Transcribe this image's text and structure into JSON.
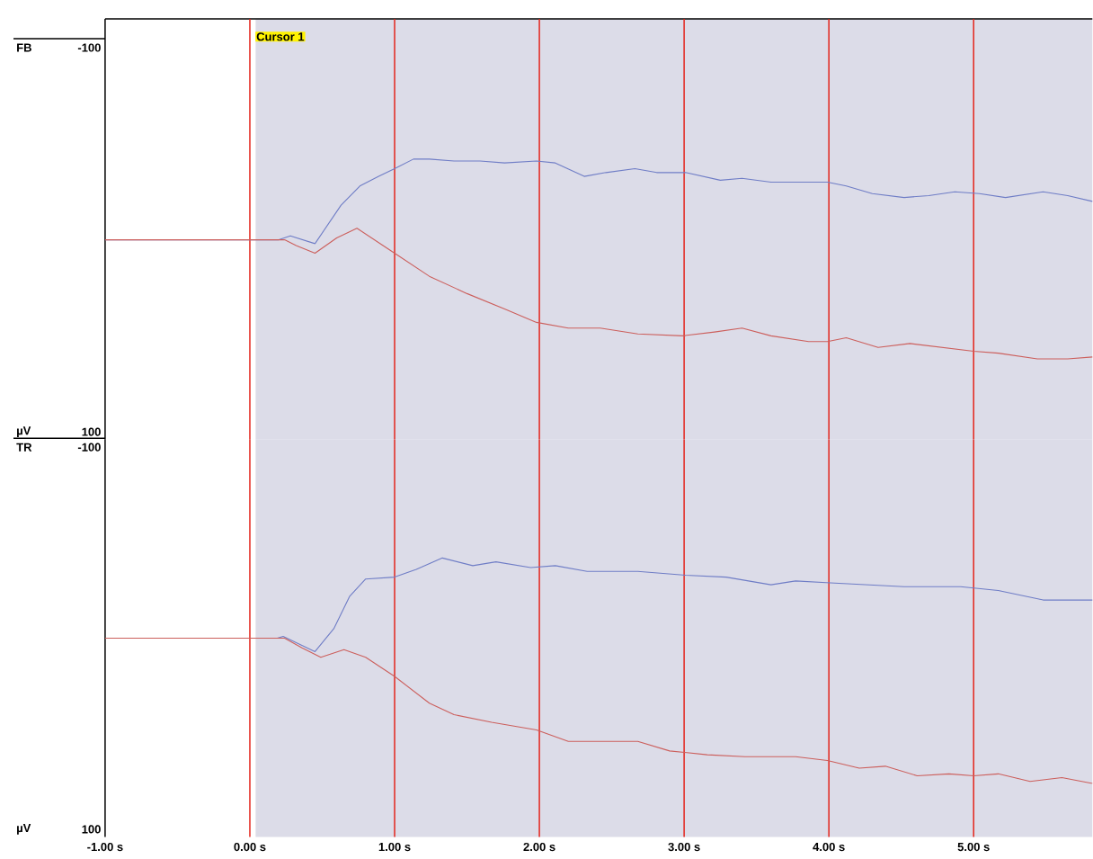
{
  "chart_data": [
    {
      "type": "line",
      "title": "FB",
      "ylabel": "µV",
      "xlim": [
        -1,
        5.82
      ],
      "ylim": [
        104,
        -115
      ],
      "yticks": [
        -100,
        100
      ],
      "tick_labels": "y",
      "series": [
        {
          "color": "#6f7dc6",
          "x": [
            -1,
            0.2,
            0.28,
            0.45,
            0.63,
            0.76,
            0.89,
            1.0,
            1.13,
            1.24,
            1.41,
            1.59,
            1.76,
            1.98,
            2.11,
            2.31,
            2.46,
            2.66,
            2.81,
            3.01,
            3.25,
            3.4,
            3.6,
            3.99,
            4.12,
            4.3,
            4.52,
            4.69,
            4.87,
            5.04,
            5.22,
            5.48,
            5.65,
            5.82
          ],
          "values": [
            0,
            0,
            -2,
            2,
            -18,
            -28,
            -33,
            -37,
            -42,
            -42,
            -41,
            -41,
            -40,
            -41,
            -40,
            -33,
            -35,
            -37,
            -35,
            -35,
            -31,
            -32,
            -30,
            -30,
            -28,
            -24,
            -22,
            -23,
            -25,
            -24,
            -22,
            -25,
            -23,
            -20
          ]
        },
        {
          "color": "#cc5f5c",
          "x": [
            -1,
            0.24,
            0.32,
            0.45,
            0.6,
            0.74,
            0.84,
            1.0,
            1.24,
            1.5,
            1.76,
            1.98,
            2.2,
            2.42,
            2.68,
            2.99,
            3.21,
            3.4,
            3.6,
            3.86,
            3.99,
            4.12,
            4.34,
            4.56,
            4.78,
            5.0,
            5.17,
            5.44,
            5.65,
            5.82
          ],
          "values": [
            0,
            0,
            3,
            7,
            -1,
            -6,
            -1,
            7,
            19,
            28,
            36,
            43,
            46,
            46,
            49,
            50,
            48,
            46,
            50,
            53,
            53,
            51,
            56,
            54,
            56,
            58,
            59,
            62,
            62,
            61
          ]
        }
      ],
      "ref_lines": [
        {
          "axis": "x",
          "value": 0,
          "label": "Cursor 1",
          "color": "#e3241b"
        },
        {
          "axis": "x",
          "value": 1,
          "color": "#e3241b"
        },
        {
          "axis": "x",
          "value": 2,
          "color": "#e3241b"
        },
        {
          "axis": "x",
          "value": 3,
          "color": "#e3241b"
        },
        {
          "axis": "x",
          "value": 4,
          "color": "#e3241b"
        },
        {
          "axis": "x",
          "value": 5,
          "color": "#e3241b"
        }
      ],
      "bands": [
        {
          "axis": "x",
          "from": 0.04,
          "to": 5.82,
          "color": "#dcdce8"
        }
      ]
    },
    {
      "type": "line",
      "title": "TR",
      "ylabel": "µV",
      "xlim": [
        -1,
        5.82
      ],
      "ylim": [
        104,
        -104
      ],
      "yticks": [
        -100,
        100
      ],
      "xticks": [
        {
          "value": -1,
          "label": "-1.00 s"
        },
        {
          "value": 0,
          "label": "0.00 s"
        },
        {
          "value": 1,
          "label": "1.00 s"
        },
        {
          "value": 2,
          "label": "2.00 s"
        },
        {
          "value": 3,
          "label": "3.00 s"
        },
        {
          "value": 4,
          "label": "4.00 s"
        },
        {
          "value": 5,
          "label": "5.00 s"
        }
      ],
      "series": [
        {
          "color": "#6f7dc6",
          "x": [
            -1,
            0.19,
            0.23,
            0.45,
            0.58,
            0.69,
            0.8,
            1.0,
            1.15,
            1.33,
            1.54,
            1.7,
            1.94,
            2.11,
            2.33,
            2.68,
            3.01,
            3.29,
            3.6,
            3.77,
            4.01,
            4.52,
            4.91,
            5.17,
            5.48,
            5.82
          ],
          "values": [
            0,
            0,
            -1,
            7,
            -5,
            -22,
            -31,
            -32,
            -36,
            -42,
            -38,
            -40,
            -37,
            -38,
            -35,
            -35,
            -33,
            -32,
            -28,
            -30,
            -29,
            -27,
            -27,
            -25,
            -20,
            -20
          ]
        },
        {
          "color": "#cc5f5c",
          "x": [
            -1,
            0.24,
            0.36,
            0.49,
            0.65,
            0.8,
            1.0,
            1.24,
            1.41,
            1.67,
            1.98,
            2.2,
            2.46,
            2.68,
            2.9,
            3.16,
            3.42,
            3.77,
            3.99,
            4.21,
            4.39,
            4.61,
            4.83,
            5.0,
            5.17,
            5.39,
            5.61,
            5.82
          ],
          "values": [
            0,
            0,
            5,
            10,
            6,
            10,
            20,
            34,
            40,
            44,
            48,
            54,
            54,
            54,
            59,
            61,
            62,
            62,
            64,
            68,
            67,
            72,
            71,
            72,
            71,
            75,
            73,
            76
          ]
        }
      ],
      "ref_lines": [
        {
          "axis": "x",
          "value": 0,
          "color": "#e3241b"
        },
        {
          "axis": "x",
          "value": 1,
          "color": "#e3241b"
        },
        {
          "axis": "x",
          "value": 2,
          "color": "#e3241b"
        },
        {
          "axis": "x",
          "value": 3,
          "color": "#e3241b"
        },
        {
          "axis": "x",
          "value": 4,
          "color": "#e3241b"
        },
        {
          "axis": "x",
          "value": 5,
          "color": "#e3241b"
        }
      ],
      "bands": [
        {
          "axis": "x",
          "from": 0.04,
          "to": 5.82,
          "color": "#dcdce8"
        }
      ]
    }
  ]
}
